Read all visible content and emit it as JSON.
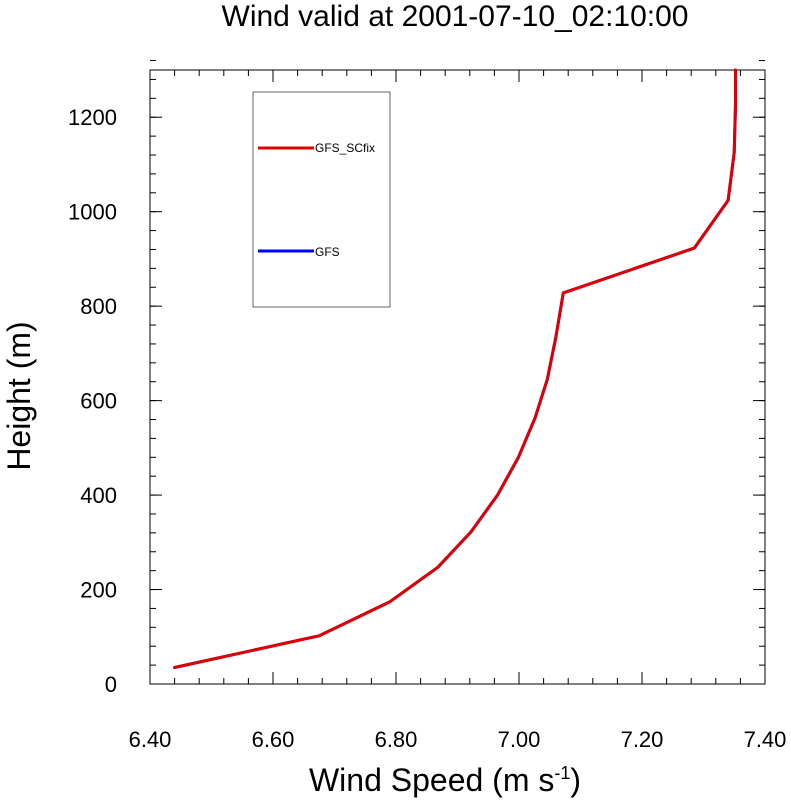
{
  "chart_data": {
    "type": "line",
    "title": "Wind valid at 2001-07-10_02:10:00",
    "xlabel": "Wind Speed (m s",
    "xlabel_superscript": "-1",
    "xlabel_suffix": ")",
    "ylabel": "Height (m)",
    "xlim": [
      6.4,
      7.4
    ],
    "ylim": [
      0,
      1300
    ],
    "xticks": [
      6.4,
      6.6,
      6.8,
      7.0,
      7.2,
      7.4
    ],
    "xtick_labels": [
      "6.40",
      "6.60",
      "6.80",
      "7.00",
      "7.20",
      "7.40"
    ],
    "yticks": [
      0,
      200,
      400,
      600,
      800,
      1000,
      1200
    ],
    "ytick_labels": [
      "0",
      "200",
      "400",
      "600",
      "800",
      "1000",
      "1200"
    ],
    "x_minor_step": 0.04,
    "y_minor_step": 40,
    "grid": false,
    "legend_placement": "top-left",
    "series": [
      {
        "name": "GFS",
        "color": "#0000ff",
        "x": [
          6.44,
          6.675,
          6.79,
          6.868,
          6.922,
          6.965,
          6.999,
          7.026,
          7.046,
          7.06,
          7.072,
          7.285,
          7.34,
          7.35,
          7.352,
          7.352
        ],
        "y": [
          35,
          102,
          174,
          247,
          322,
          400,
          480,
          563,
          645,
          735,
          828,
          923,
          1024,
          1125,
          1225,
          1300
        ]
      },
      {
        "name": "GFS_SCfix",
        "color": "#e00000",
        "x": [
          6.44,
          6.675,
          6.79,
          6.868,
          6.922,
          6.965,
          6.999,
          7.026,
          7.046,
          7.06,
          7.072,
          7.285,
          7.34,
          7.35,
          7.352,
          7.352
        ],
        "y": [
          35,
          102,
          174,
          247,
          322,
          400,
          480,
          563,
          645,
          735,
          828,
          923,
          1024,
          1125,
          1225,
          1300
        ]
      }
    ],
    "legend_entries": [
      {
        "label": "GFS_SCfix",
        "color": "#e00000"
      },
      {
        "label": "GFS",
        "color": "#0000ff"
      }
    ]
  }
}
